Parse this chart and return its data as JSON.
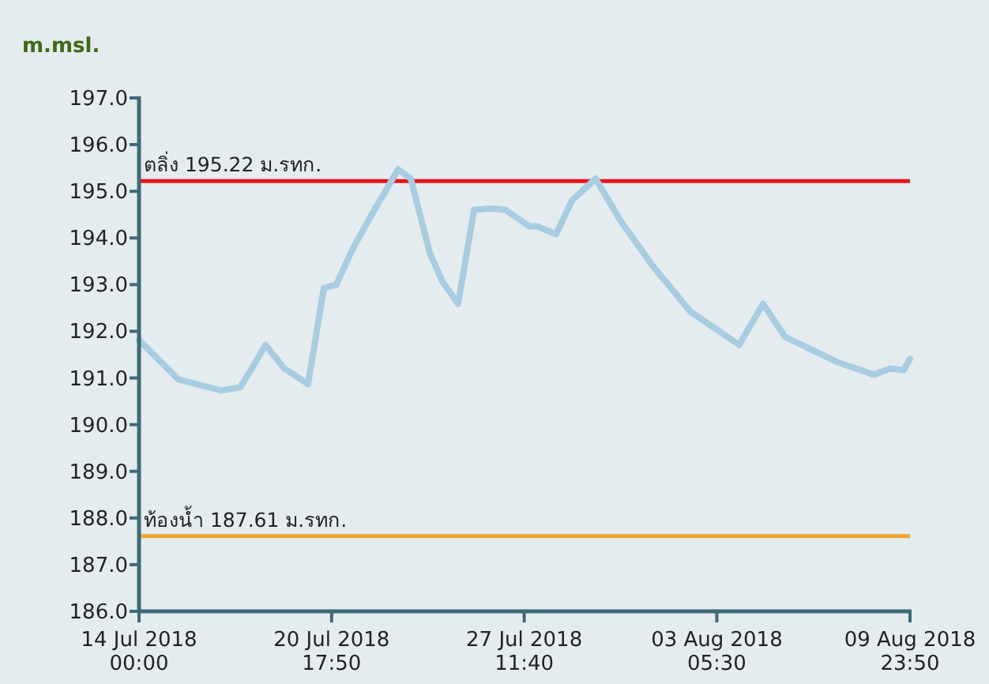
{
  "chart_data": {
    "type": "line",
    "ylabel": "m.msl.",
    "x": [
      "2018-07-14T00:00",
      "2018-07-15T09:10",
      "2018-07-16T21:00",
      "2018-07-17T13:00",
      "2018-07-17T23:40",
      "2018-07-18T10:10",
      "2018-07-19T02:10",
      "2018-07-19T22:00",
      "2018-07-20T11:20",
      "2018-07-20T21:50",
      "2018-07-21T11:10",
      "2018-07-22T05:50",
      "2018-07-23T01:40",
      "2018-07-23T12:20",
      "2018-07-24T04:20",
      "2018-07-24T14:50",
      "2018-07-25T04:10",
      "2018-07-25T17:30",
      "2018-07-26T06:40",
      "2018-07-26T20:00",
      "2018-07-27T15:50",
      "2018-07-27T22:30",
      "2018-07-28T14:30",
      "2018-07-29T03:40",
      "2018-07-29T23:40",
      "2018-07-30T20:50",
      "2018-07-31T23:20",
      "2018-08-02T07:20",
      "2018-08-04T00:20",
      "2018-08-04T20:20",
      "2018-08-05T14:50",
      "2018-08-07T10:50",
      "2018-08-08T17:20",
      "2018-08-09T06:40",
      "2018-08-09T18:30",
      "2018-08-09T23:50"
    ],
    "series": [
      {
        "color": "#a8cde0",
        "values": [
          191.81,
          190.97,
          190.73,
          190.8,
          191.24,
          191.71,
          191.2,
          190.87,
          192.93,
          193.0,
          193.75,
          194.6,
          195.47,
          195.27,
          193.68,
          193.07,
          192.59,
          194.6,
          194.63,
          194.6,
          194.25,
          194.25,
          194.08,
          194.8,
          195.27,
          194.36,
          193.41,
          192.42,
          191.71,
          192.59,
          191.88,
          191.34,
          191.07,
          191.2,
          191.17,
          191.41
        ]
      }
    ],
    "xlim": [
      "2018-07-14T00:00",
      "2018-08-09T23:50"
    ],
    "xticks": [
      {
        "value": "2018-07-14T00:00",
        "label": "14 Jul 2018\n00:00"
      },
      {
        "value": "2018-07-20T17:50",
        "label": "20 Jul 2018\n17:50"
      },
      {
        "value": "2018-07-27T11:40",
        "label": "27 Jul 2018\n11:40"
      },
      {
        "value": "2018-08-03T05:30",
        "label": "03 Aug 2018\n05:30"
      },
      {
        "value": "2018-08-09T23:50",
        "label": "09 Aug 2018\n23:50"
      }
    ],
    "ylim": [
      186,
      197
    ],
    "yticks": [
      {
        "value": 186,
        "label": "186.0"
      },
      {
        "value": 187,
        "label": "187.0"
      },
      {
        "value": 188,
        "label": "188.0"
      },
      {
        "value": 189,
        "label": "189.0"
      },
      {
        "value": 190,
        "label": "190.0"
      },
      {
        "value": 191,
        "label": "191.0"
      },
      {
        "value": 192,
        "label": "192.0"
      },
      {
        "value": 193,
        "label": "193.0"
      },
      {
        "value": 194,
        "label": "194.0"
      },
      {
        "value": 195,
        "label": "195.0"
      },
      {
        "value": 196,
        "label": "196.0"
      },
      {
        "value": 197,
        "label": "197.0"
      }
    ],
    "ref_lines": [
      {
        "axis": "y",
        "value": 195.22,
        "label": "ตลิ่ง 195.22 ม.รทก.",
        "color": "#e8141c"
      },
      {
        "axis": "y",
        "value": 187.61,
        "label": "ท้องน้ำ 187.61 ม.รทก.",
        "color": "#f2a431"
      }
    ],
    "grid": false,
    "marker": "none",
    "line_style": "solid"
  }
}
